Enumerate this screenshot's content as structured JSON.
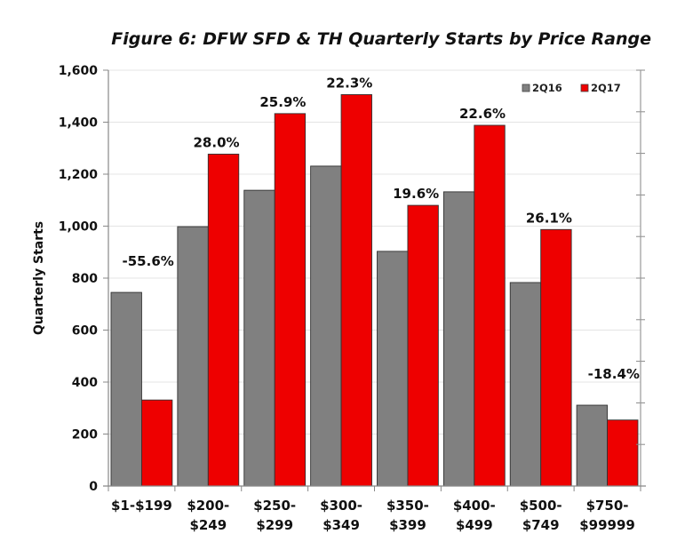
{
  "chart_data": {
    "type": "bar",
    "title": "Figure 6: DFW SFD & TH Quarterly Starts by Price Range",
    "xlabel": "",
    "ylabel": "Quarterly Starts",
    "ylim": [
      0,
      1600
    ],
    "yticks": [
      0,
      200,
      400,
      600,
      800,
      1000,
      1200,
      1400,
      1600
    ],
    "ytick_labels": [
      "0",
      "200",
      "400",
      "600",
      "800",
      "1,000",
      "1,200",
      "1,400",
      "1,600"
    ],
    "grid": true,
    "legend_position": "top-right",
    "categories": [
      [
        "$1-$199"
      ],
      [
        "$200-",
        "$249"
      ],
      [
        "$250-",
        "$299"
      ],
      [
        "$300-",
        "$349"
      ],
      [
        "$350-",
        "$399"
      ],
      [
        "$400-",
        "$499"
      ],
      [
        "$500-",
        "$749"
      ],
      [
        "$750-",
        "$99999"
      ]
    ],
    "series": [
      {
        "name": "2Q16",
        "color": "#808080",
        "values": [
          745,
          998,
          1138,
          1231,
          903,
          1132,
          783,
          311
        ]
      },
      {
        "name": "2Q17",
        "color": "#ee0000",
        "values": [
          331,
          1277,
          1433,
          1506,
          1080,
          1388,
          987,
          254
        ]
      }
    ],
    "annotations": [
      "-55.6%",
      "28.0%",
      "25.9%",
      "22.3%",
      "19.6%",
      "22.6%",
      "26.1%",
      "-18.4%"
    ],
    "secondary_axis_ticks": 10
  }
}
